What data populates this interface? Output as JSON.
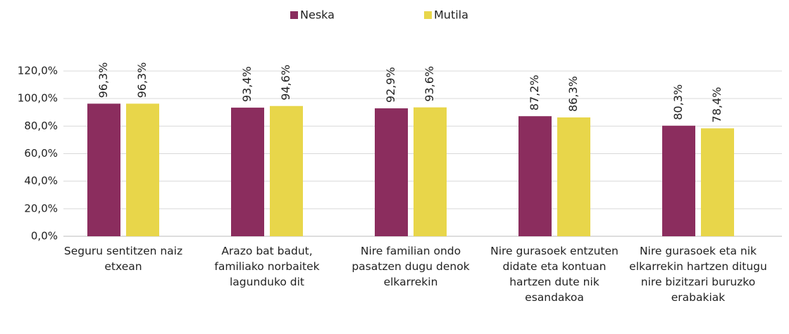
{
  "chart_data": {
    "type": "bar",
    "categories": [
      "Seguru sentitzen naiz etxean",
      "Arazo bat badut, familiako norbaitek lagunduko dit",
      "Nire familian ondo pasatzen dugu denok elkarrekin",
      "Nire gurasoek entzuten didate eta kontuan hartzen dute nik esandakoa",
      "Nire gurasoek eta nik elkarrekin hartzen ditugu nire bizitzari buruzko erabakiak"
    ],
    "series": [
      {
        "name": "Neska",
        "color": "#8b2d5e",
        "values": [
          96.3,
          93.4,
          92.9,
          87.2,
          80.3
        ],
        "value_labels": [
          "96,3%",
          "93,4%",
          "92,9%",
          "87,2%",
          "80,3%"
        ]
      },
      {
        "name": "Mutila",
        "color": "#e8d64a",
        "values": [
          96.3,
          94.6,
          93.6,
          86.3,
          78.4
        ],
        "value_labels": [
          "96,3%",
          "94,6%",
          "93,6%",
          "86,3%",
          "78,4%"
        ]
      }
    ],
    "ylim": [
      0,
      120
    ],
    "yticks": [
      {
        "value": 0,
        "label": "0,0%"
      },
      {
        "value": 20,
        "label": "20,0%"
      },
      {
        "value": 40,
        "label": "40,0%"
      },
      {
        "value": 60,
        "label": "60,0%"
      },
      {
        "value": 80,
        "label": "80,0%"
      },
      {
        "value": 100,
        "label": "100,0%"
      },
      {
        "value": 120,
        "label": "120,0%"
      }
    ],
    "grid": true,
    "legend": "top"
  }
}
